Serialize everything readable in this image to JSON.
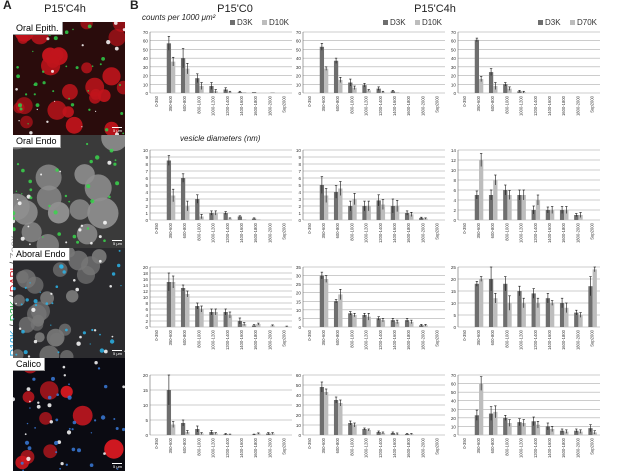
{
  "panel_a": {
    "letter": "A",
    "header": "P15'C4h",
    "images": [
      {
        "label": "Oral Epith.",
        "scale": "5 μm",
        "bg": "#2a0c0c",
        "cell": "#c1141c",
        "dot": "#2fcf4a"
      },
      {
        "label": "Oral Endo",
        "scale": "5 μm",
        "bg": "#3a3a3a",
        "cell": "#8f8f8f",
        "dot": "#39d64c"
      },
      {
        "label": "Aboral Endo",
        "scale": "5 μm",
        "bg": "#2b2b2e",
        "cell": "#777777",
        "dot": "#2bb3e6"
      },
      {
        "label": "Calico",
        "scale": "5 μm",
        "bg": "#0b0b12",
        "cell": "#d01820",
        "dot": "#3a7ad8"
      }
    ],
    "side_label_parts": [
      {
        "text": "D10K",
        "color": "#2aa8e0"
      },
      {
        "text": " / ",
        "color": "#333333"
      },
      {
        "text": "D3K",
        "color": "#27b34a"
      },
      {
        "text": " / ",
        "color": "#333333"
      },
      {
        "text": "DAPI",
        "color": "#d3202a"
      },
      {
        "text": " / ",
        "color": "#333333"
      },
      {
        "text": "Zoox",
        "color": "#9a9a9a"
      }
    ]
  },
  "panel_b": {
    "letter": "B",
    "headers": [
      "P15'C0",
      "P15'C4h"
    ],
    "y_axis_note": "counts per 1000 μm²",
    "x_axis_note": "vesicle diameters (nm)",
    "colors": {
      "dark": "#6e6e6e",
      "light": "#bdbdbd",
      "grid": "#9a9a9a",
      "axis": "#666666"
    }
  },
  "chart_data": [
    {
      "type": "bar",
      "row": 1,
      "col": 1,
      "categories": [
        "0-350",
        "350-600",
        "600-800",
        "800-1000",
        "1000-1200",
        "1200-1400",
        "1400-1600",
        "1600-1800",
        "1800-2000",
        "Sup2000"
      ],
      "ylim": [
        0,
        70
      ],
      "yticks": [
        0,
        10,
        20,
        30,
        40,
        50,
        60,
        70
      ],
      "legend": [
        "D3K",
        "D10K"
      ],
      "series": [
        {
          "name": "D3K",
          "values": [
            0,
            57,
            40,
            17,
            8,
            4,
            1,
            1,
            0,
            0
          ],
          "errors": [
            0,
            8,
            11,
            5,
            4,
            2,
            1,
            0,
            0,
            0
          ]
        },
        {
          "name": "D10K",
          "values": [
            0,
            36,
            28,
            8,
            2,
            1,
            1,
            0,
            1,
            0
          ],
          "errors": [
            0,
            5,
            6,
            4,
            2,
            1,
            0,
            0,
            0,
            0
          ]
        }
      ]
    },
    {
      "type": "bar",
      "row": 1,
      "col": 2,
      "categories": [
        "0-350",
        "350-600",
        "600-800",
        "800-1000",
        "1000-1200",
        "1200-1400",
        "1400-1600",
        "1600-1800",
        "1800-2000",
        "Sup2000"
      ],
      "ylim": [
        0,
        70
      ],
      "yticks": [
        0,
        10,
        20,
        30,
        40,
        50,
        60,
        70
      ],
      "legend": [
        "D3K",
        "D10K"
      ],
      "series": [
        {
          "name": "D3K",
          "values": [
            0,
            53,
            37,
            12,
            9,
            5,
            2,
            0,
            0,
            0
          ],
          "errors": [
            0,
            4,
            3,
            4,
            2,
            2,
            1,
            0,
            0,
            0
          ]
        },
        {
          "name": "D10K",
          "values": [
            0,
            28,
            15,
            6,
            3,
            1,
            1,
            0,
            0,
            0
          ],
          "errors": [
            0,
            2,
            3,
            2,
            1,
            1,
            0,
            0,
            0,
            0
          ]
        }
      ]
    },
    {
      "type": "bar",
      "row": 1,
      "col": 3,
      "categories": [
        "0-350",
        "350-600",
        "600-800",
        "800-1000",
        "1000-1200",
        "1200-1400",
        "1400-1600",
        "1600-1800",
        "1800-2000",
        "Sup2000"
      ],
      "ylim": [
        0,
        70
      ],
      "yticks": [
        0,
        10,
        20,
        30,
        40,
        50,
        60,
        70
      ],
      "legend": [
        "D3K",
        "D70K"
      ],
      "series": [
        {
          "name": "D3K",
          "values": [
            0,
            61,
            24,
            10,
            2,
            0,
            0,
            0,
            0,
            0
          ],
          "errors": [
            0,
            2,
            4,
            2,
            1,
            0,
            0,
            0,
            0,
            0
          ]
        },
        {
          "name": "D70K",
          "values": [
            0,
            16,
            8,
            5,
            1,
            0,
            0,
            0,
            0,
            0
          ],
          "errors": [
            0,
            3,
            4,
            2,
            1,
            0,
            0,
            0,
            0,
            0
          ]
        }
      ]
    },
    {
      "type": "bar",
      "row": 2,
      "col": 1,
      "categories": [
        "0-350",
        "350-600",
        "600-800",
        "800-1000",
        "1000-1200",
        "1200-1400",
        "1400-1600",
        "1600-1800",
        "1800-2000",
        "Sup2000"
      ],
      "ylim": [
        0,
        10
      ],
      "yticks": [
        0,
        1,
        2,
        3,
        4,
        5,
        6,
        7,
        8,
        9,
        10
      ],
      "series": [
        {
          "values": [
            0,
            8.5,
            6,
            3,
            1,
            1,
            0.5,
            0.2,
            0,
            0
          ],
          "errors": [
            0,
            0.7,
            0.6,
            0.6,
            0.3,
            0.2,
            0.1,
            0.1,
            0,
            0
          ]
        },
        {
          "values": [
            0,
            3.5,
            2,
            0.5,
            1,
            0.2,
            0.1,
            0.1,
            0,
            0
          ],
          "errors": [
            0,
            0.9,
            0.7,
            0.3,
            0.3,
            0.1,
            0,
            0,
            0,
            0
          ]
        }
      ]
    },
    {
      "type": "bar",
      "row": 2,
      "col": 2,
      "categories": [
        "0-350",
        "350-600",
        "600-800",
        "800-1000",
        "1000-1200",
        "1200-1400",
        "1400-1600",
        "1600-1800",
        "1800-2000",
        "Sup2000"
      ],
      "ylim": [
        0,
        10
      ],
      "yticks": [
        0,
        1,
        2,
        3,
        4,
        5,
        6,
        7,
        8,
        9,
        10
      ],
      "series": [
        {
          "values": [
            0,
            5,
            4,
            2,
            2,
            2.8,
            2,
            1,
            0.3,
            0
          ],
          "errors": [
            0,
            1.2,
            0.9,
            0.7,
            0.7,
            0.8,
            1,
            0.3,
            0.1,
            0
          ]
        },
        {
          "values": [
            0,
            3.5,
            4.5,
            3,
            2,
            2.2,
            2,
            0.8,
            0.2,
            0
          ],
          "errors": [
            0,
            1,
            1,
            0.8,
            0.7,
            0.7,
            0.8,
            0.3,
            0.1,
            0
          ]
        }
      ]
    },
    {
      "type": "bar",
      "row": 2,
      "col": 3,
      "categories": [
        "0-350",
        "350-600",
        "600-800",
        "800-1000",
        "1000-1200",
        "1200-1400",
        "1400-1600",
        "1600-1800",
        "1800-2000",
        "Sup2000"
      ],
      "ylim": [
        0,
        14
      ],
      "yticks": [
        0,
        2,
        4,
        6,
        8,
        10,
        12,
        14
      ],
      "series": [
        {
          "values": [
            0,
            5,
            5,
            6,
            5,
            2,
            2,
            2,
            1,
            0
          ],
          "errors": [
            0,
            0.8,
            1,
            1,
            1,
            0.8,
            0.6,
            0.7,
            0.3,
            0
          ]
        },
        {
          "values": [
            0,
            12,
            8,
            5,
            5,
            4,
            2,
            2,
            1,
            0
          ],
          "errors": [
            0,
            1.3,
            1,
            0.9,
            1,
            1,
            0.7,
            0.7,
            0.5,
            0
          ]
        }
      ]
    },
    {
      "type": "bar",
      "row": 3,
      "col": 1,
      "categories": [
        "0-350",
        "350-600",
        "600-800",
        "800-1000",
        "1000-1200",
        "1200-1400",
        "1400-1600",
        "1600-1800",
        "1800-2000",
        "Sup2000"
      ],
      "ylim": [
        0,
        20
      ],
      "yticks": [
        0,
        2,
        4,
        6,
        8,
        10,
        12,
        14,
        16,
        18,
        20
      ],
      "series": [
        {
          "values": [
            0,
            15,
            13,
            7,
            5,
            5,
            2,
            0.5,
            0,
            0
          ],
          "errors": [
            0,
            3,
            1,
            1,
            1,
            1,
            1,
            0.3,
            0,
            0
          ]
        },
        {
          "values": [
            0,
            15,
            11,
            6,
            5,
            4,
            1,
            1,
            0.5,
            0.2
          ],
          "errors": [
            0,
            2,
            1,
            1,
            1,
            1,
            0.5,
            0.3,
            0.2,
            0.1
          ]
        }
      ]
    },
    {
      "type": "bar",
      "row": 3,
      "col": 2,
      "categories": [
        "0-350",
        "350-600",
        "600-800",
        "800-1000",
        "1000-1200",
        "1200-1400",
        "1400-1600",
        "1600-1800",
        "1800-2000",
        "Sup2000"
      ],
      "ylim": [
        0,
        35
      ],
      "yticks": [
        0,
        5,
        10,
        15,
        20,
        25,
        30,
        35
      ],
      "series": [
        {
          "values": [
            0,
            30,
            15,
            8,
            7,
            5,
            4,
            4,
            1,
            0
          ],
          "errors": [
            0,
            2,
            1,
            1,
            1,
            1,
            1,
            1,
            0.5,
            0
          ]
        },
        {
          "values": [
            0,
            28,
            19,
            7,
            6,
            4,
            3,
            3,
            1,
            0
          ],
          "errors": [
            0,
            2,
            3,
            1,
            2,
            1,
            1,
            1,
            0.5,
            0
          ]
        }
      ]
    },
    {
      "type": "bar",
      "row": 3,
      "col": 3,
      "categories": [
        "0-350",
        "350-600",
        "600-800",
        "800-1000",
        "1000-1200",
        "1200-1400",
        "1400-1600",
        "1600-1800",
        "1800-2000",
        "Sup2000"
      ],
      "ylim": [
        0,
        25
      ],
      "yticks": [
        0,
        5,
        10,
        15,
        20,
        25
      ],
      "series": [
        {
          "values": [
            0,
            18,
            20,
            18,
            15,
            14,
            12,
            10,
            6,
            17
          ],
          "errors": [
            0,
            1,
            5,
            3,
            2,
            2,
            2,
            2,
            1,
            4
          ]
        },
        {
          "values": [
            0,
            20,
            12,
            10,
            10,
            10,
            10,
            8,
            5,
            24
          ],
          "errors": [
            0,
            1,
            2,
            3,
            2,
            2,
            1,
            2,
            1,
            1
          ]
        }
      ]
    },
    {
      "type": "bar",
      "row": 4,
      "col": 1,
      "categories": [
        "0-350",
        "350-600",
        "600-800",
        "800-1000",
        "1000-1200",
        "1200-1400",
        "1400-1600",
        "1600-1800",
        "1800-2000",
        "Sup2000"
      ],
      "ylim": [
        0,
        20
      ],
      "yticks": [
        0,
        5,
        10,
        15,
        20
      ],
      "series": [
        {
          "values": [
            0,
            15,
            4,
            2,
            1,
            0.3,
            0,
            0.2,
            0.5,
            0
          ],
          "errors": [
            0,
            5,
            1,
            1,
            0.5,
            0.2,
            0,
            0.1,
            0.3,
            0
          ]
        },
        {
          "values": [
            0,
            3.5,
            1,
            0.5,
            0.5,
            0.2,
            0,
            0.5,
            0.5,
            0
          ],
          "errors": [
            0,
            1,
            0.5,
            0.3,
            0.3,
            0.1,
            0,
            0.2,
            0.3,
            0
          ]
        }
      ]
    },
    {
      "type": "bar",
      "row": 4,
      "col": 2,
      "categories": [
        "0-350",
        "350-600",
        "600-800",
        "800-1000",
        "1000-1200",
        "1200-1400",
        "1400-1600",
        "1600-1800",
        "1800-2000",
        "Sup2000"
      ],
      "ylim": [
        0,
        60
      ],
      "yticks": [
        0,
        10,
        20,
        30,
        40,
        50,
        60
      ],
      "series": [
        {
          "values": [
            0,
            48,
            35,
            12,
            6,
            3,
            2,
            1,
            0,
            0
          ],
          "errors": [
            0,
            5,
            3,
            2,
            1,
            1,
            1,
            0.5,
            0,
            0
          ]
        },
        {
          "values": [
            0,
            43,
            32,
            10,
            5,
            2,
            1,
            1,
            0,
            0
          ],
          "errors": [
            0,
            3,
            3,
            2,
            1,
            1,
            1,
            0.5,
            0,
            0
          ]
        }
      ]
    },
    {
      "type": "bar",
      "row": 4,
      "col": 3,
      "categories": [
        "0-350",
        "350-600",
        "600-800",
        "800-1000",
        "1000-1200",
        "1200-1400",
        "1400-1600",
        "1600-1800",
        "1800-2000",
        "Sup2000"
      ],
      "ylim": [
        0,
        70
      ],
      "yticks": [
        0,
        10,
        20,
        30,
        40,
        50,
        60,
        70
      ],
      "series": [
        {
          "values": [
            0,
            23,
            25,
            20,
            15,
            16,
            10,
            5,
            5,
            8
          ],
          "errors": [
            0,
            6,
            8,
            3,
            4,
            5,
            4,
            2,
            2,
            4
          ]
        },
        {
          "values": [
            0,
            60,
            27,
            14,
            14,
            12,
            7,
            4,
            4,
            3
          ],
          "errors": [
            0,
            8,
            7,
            4,
            4,
            4,
            3,
            2,
            2,
            2
          ]
        }
      ]
    }
  ]
}
